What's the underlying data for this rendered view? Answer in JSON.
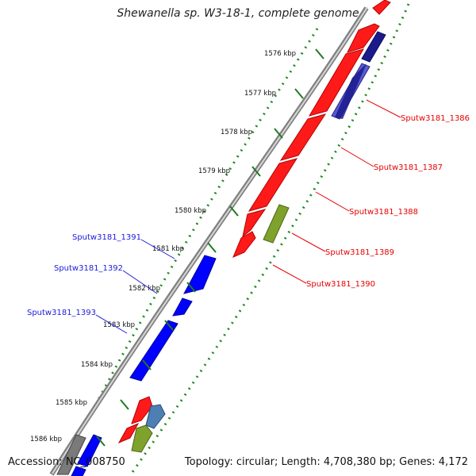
{
  "title": "Shewanella sp. W3-18-1, complete genome",
  "accession_label": "Accession: NC_008750",
  "summary_label": "Topology: circular; Length: 4,708,380 bp; Genes: 4,172",
  "ticks": [
    {
      "label": "1576 kbp"
    },
    {
      "label": "1577 kbp"
    },
    {
      "label": "1578 kbp"
    },
    {
      "label": "1579 kbp"
    },
    {
      "label": "1580 kbp"
    },
    {
      "label": "1581 kbp"
    },
    {
      "label": "1582 kbp"
    },
    {
      "label": "1583 kbp"
    },
    {
      "label": "1584 kbp"
    },
    {
      "label": "1585 kbp"
    },
    {
      "label": "1586 kbp"
    }
  ],
  "gene_labels": [
    {
      "text": "Sputw3181_1386",
      "color": "#e60000"
    },
    {
      "text": "Sputw3181_1387",
      "color": "#e60000"
    },
    {
      "text": "Sputw3181_1388",
      "color": "#e60000"
    },
    {
      "text": "Sputw3181_1389",
      "color": "#e60000"
    },
    {
      "text": "Sputw3181_1390",
      "color": "#e60000"
    },
    {
      "text": "Sputw3181_1391",
      "color": "#1a1adb"
    },
    {
      "text": "Sputw3181_1392",
      "color": "#1a1adb"
    },
    {
      "text": "Sputw3181_1393",
      "color": "#1a1adb"
    }
  ],
  "colors": {
    "forward_cds": "#ff0000",
    "reverse_cds": "#0000ff",
    "rna": "#6b8e23",
    "backbone": "#999999",
    "gc_dots": "#1f8a1f",
    "strand_blue_dark": "#1a1a8c",
    "strand_blue_light": "#6d6dd6"
  }
}
